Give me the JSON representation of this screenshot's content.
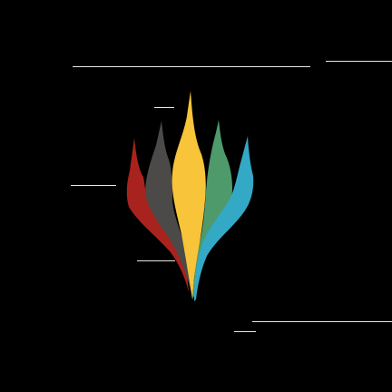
{
  "logo": {
    "icon": "multicolor-crown-logo-icon",
    "colors": {
      "red": "#a8231e",
      "black": "#4b4a48",
      "white": "#f7c43a",
      "green": "#4e9a6a",
      "blue": "#33a9c6"
    }
  }
}
